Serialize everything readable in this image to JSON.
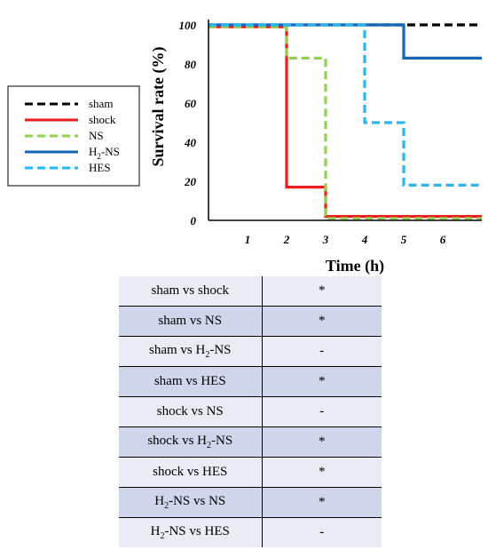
{
  "chart_data": {
    "type": "line",
    "subtype": "step",
    "xlabel": "Time (h)",
    "ylabel": "Survival rate (%)",
    "xlim": [
      0,
      7
    ],
    "ylim": [
      0,
      100
    ],
    "xticks": [
      "1",
      "2",
      "3",
      "4",
      "5",
      "6"
    ],
    "yticks": [
      "0",
      "20",
      "40",
      "60",
      "80",
      "100"
    ],
    "grid": false,
    "legend_position": "left",
    "series": [
      {
        "name": "sham",
        "color": "#000000",
        "dash": true,
        "x": [
          0,
          7
        ],
        "y": [
          100,
          100
        ]
      },
      {
        "name": "shock",
        "color": "#ee1c1c",
        "dash": false,
        "x": [
          0,
          2,
          2,
          3,
          3,
          7
        ],
        "y": [
          99,
          99,
          17,
          17,
          2,
          2
        ]
      },
      {
        "name": "NS",
        "color": "#92d050",
        "dash": true,
        "x": [
          0,
          2,
          2,
          3,
          3,
          7
        ],
        "y": [
          99,
          99,
          83,
          83,
          1,
          1
        ]
      },
      {
        "name": "H2-NS",
        "name_base": "H",
        "name_sub": "2",
        "name_rest": "-NS",
        "color": "#1565b9",
        "dash": false,
        "x": [
          0,
          5,
          5,
          7
        ],
        "y": [
          100,
          100,
          83,
          83
        ]
      },
      {
        "name": "HES",
        "color": "#29b6f0",
        "dash": true,
        "x": [
          0,
          4,
          4,
          5,
          5,
          7
        ],
        "y": [
          100,
          100,
          50,
          50,
          18,
          18
        ]
      }
    ]
  },
  "table": {
    "rows": [
      {
        "cmp": [
          "sham vs shock"
        ],
        "sig": "*"
      },
      {
        "cmp": [
          "sham vs NS"
        ],
        "sig": "*"
      },
      {
        "cmp": [
          "sham vs H",
          "2",
          "-NS"
        ],
        "sig": "-"
      },
      {
        "cmp": [
          "sham vs HES"
        ],
        "sig": "*"
      },
      {
        "cmp": [
          "shock vs NS"
        ],
        "sig": "-"
      },
      {
        "cmp": [
          "shock vs H",
          "2",
          "-NS"
        ],
        "sig": "*"
      },
      {
        "cmp": [
          "shock vs HES"
        ],
        "sig": "*"
      },
      {
        "cmp": [
          "H",
          "2",
          "-NS vs NS"
        ],
        "sig": "*"
      },
      {
        "cmp": [
          "H",
          "2",
          "-NS vs HES"
        ],
        "sig": "-"
      }
    ]
  }
}
